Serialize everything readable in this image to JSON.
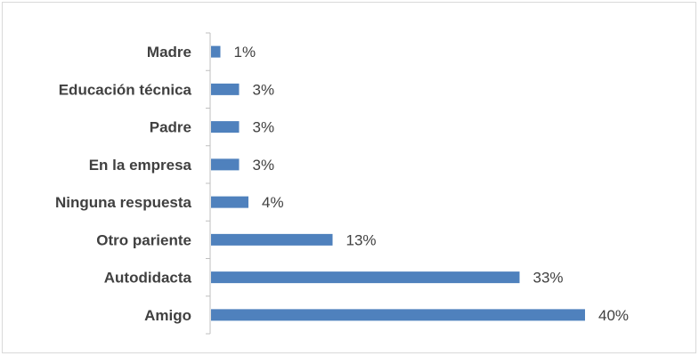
{
  "chart_data": {
    "type": "bar",
    "orientation": "horizontal",
    "categories": [
      "Madre",
      "Educación técnica",
      "Padre",
      "En la empresa",
      "Ninguna respuesta",
      "Otro pariente",
      "Autodidacta",
      "Amigo"
    ],
    "values": [
      1,
      3,
      3,
      3,
      4,
      13,
      33,
      40
    ],
    "value_labels": [
      "1%",
      "3%",
      "3%",
      "3%",
      "4%",
      "13%",
      "33%",
      "40%"
    ],
    "xlim": [
      0,
      40
    ],
    "grid": false,
    "legend": "none",
    "bar_color": "#4f81bd",
    "axis_color": "#bfbfbf",
    "label_color": "#404040"
  }
}
